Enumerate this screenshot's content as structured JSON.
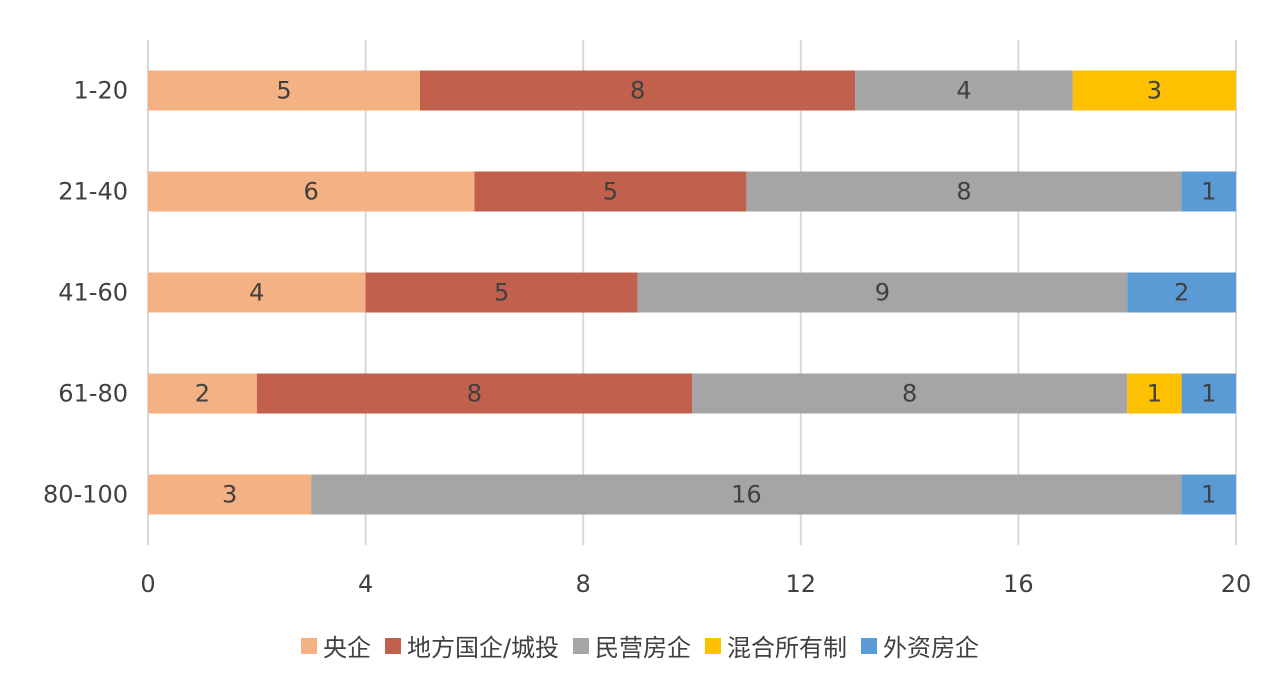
{
  "chart_data": {
    "type": "bar",
    "orientation": "horizontal",
    "stacked": true,
    "categories": [
      "1-20",
      "21-40",
      "41-60",
      "61-80",
      "80-100"
    ],
    "series": [
      {
        "name": "央企",
        "color": "#F4B183",
        "values": [
          5,
          6,
          4,
          2,
          3
        ]
      },
      {
        "name": "地方国企/城投",
        "color": "#C0604D",
        "values": [
          8,
          5,
          5,
          8,
          0
        ]
      },
      {
        "name": "民营房企",
        "color": "#A5A5A5",
        "values": [
          4,
          8,
          9,
          8,
          16
        ]
      },
      {
        "name": "混合所有制",
        "color": "#FFC000",
        "values": [
          3,
          0,
          0,
          1,
          0
        ]
      },
      {
        "name": "外资房企",
        "color": "#5B9BD5",
        "values": [
          0,
          1,
          2,
          1,
          1
        ]
      }
    ],
    "xlim": [
      0,
      20
    ],
    "xticks": [
      0,
      4,
      8,
      12,
      16,
      20
    ],
    "grid": true,
    "legend_position": "bottom",
    "data_labels": true
  }
}
